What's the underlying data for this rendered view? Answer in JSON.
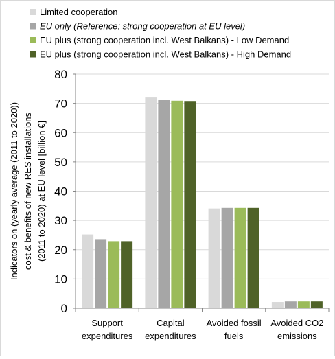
{
  "chart_data": {
    "type": "bar",
    "title": "",
    "xlabel": "",
    "ylabel": "Indicators on (yearly average (2011 to 2020)) cost & benefits of new RES installations (2011 to 2020) at EU level [billion €]",
    "ylabel_lines": [
      "Indicators on (yearly average (2011 to 2020))",
      "cost & benefits of new RES installations",
      "(2011 to 2020) at EU level [billion €]"
    ],
    "ylim": [
      0,
      80
    ],
    "yticks": [
      0,
      10,
      20,
      30,
      40,
      50,
      60,
      70,
      80
    ],
    "grid": true,
    "legend_position": "top-left",
    "categories": [
      "Support expenditures",
      "Capital expenditures",
      "Avoided fossil fuels",
      "Avoided CO2 emissions"
    ],
    "category_lines": [
      [
        "Support",
        "expenditures"
      ],
      [
        "Capital",
        "expenditures"
      ],
      [
        "Avoided fossil",
        "fuels"
      ],
      [
        "Avoided CO2",
        "emissions"
      ]
    ],
    "series": [
      {
        "name": "Limited cooperation",
        "italic": false,
        "color": "#d9d9d9",
        "values": [
          25.2,
          72.0,
          34.1,
          2.1
        ]
      },
      {
        "name": "EU only (Reference: strong cooperation at EU level)",
        "italic": true,
        "color": "#a6a6a6",
        "values": [
          23.6,
          71.3,
          34.3,
          2.3
        ]
      },
      {
        "name": "EU plus (strong cooperation incl. West Balkans) - Low Demand",
        "italic": false,
        "color": "#9bbb59",
        "values": [
          22.9,
          70.9,
          34.3,
          2.3
        ]
      },
      {
        "name": "EU plus (strong cooperation incl. West Balkans) - High Demand",
        "italic": false,
        "color": "#4f6228",
        "values": [
          22.9,
          70.8,
          34.3,
          2.3
        ]
      }
    ]
  }
}
